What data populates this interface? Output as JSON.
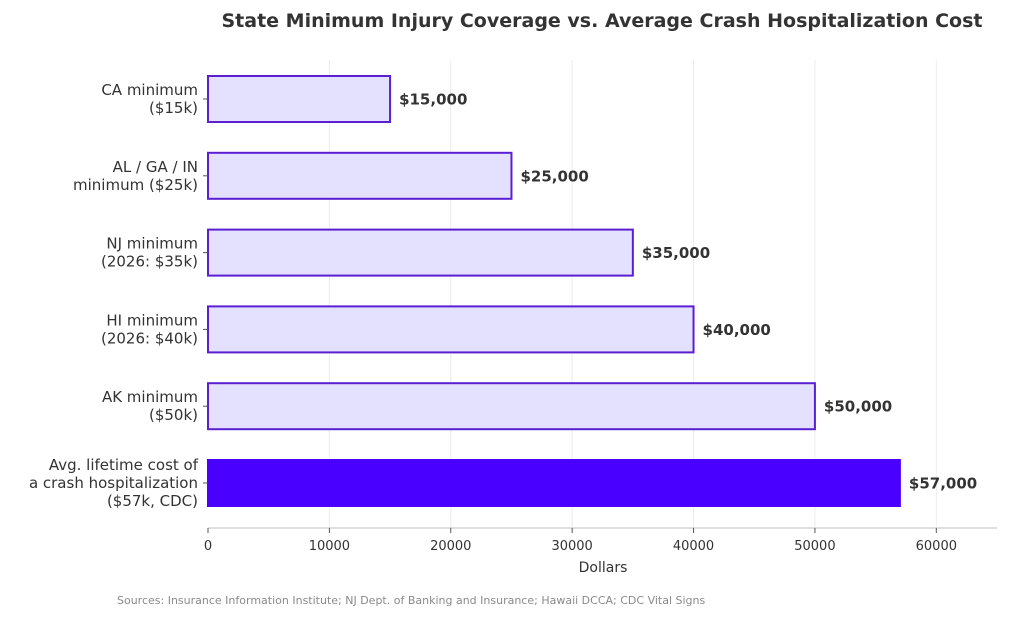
{
  "chart_data": {
    "type": "bar",
    "orientation": "horizontal",
    "title": "State Minimum Injury Coverage vs. Average Crash Hospitalization Cost",
    "xlabel": "Dollars",
    "ylabel": "",
    "xlim": [
      0,
      65000
    ],
    "x_ticks": [
      0,
      10000,
      20000,
      30000,
      40000,
      50000,
      60000
    ],
    "grid": "vertical",
    "categories": [
      [
        "CA minimum",
        "($15k)"
      ],
      [
        "AL / GA / IN",
        "minimum ($25k)"
      ],
      [
        "NJ minimum",
        "(2026: $35k)"
      ],
      [
        "HI minimum",
        "(2026: $40k)"
      ],
      [
        "AK minimum",
        "($50k)"
      ],
      [
        "Avg. lifetime cost of",
        "a crash hospitalization",
        "($57k, CDC)"
      ]
    ],
    "values": [
      15000,
      25000,
      35000,
      40000,
      50000,
      57000
    ],
    "data_labels": [
      "$15,000",
      "$25,000",
      "$35,000",
      "$40,000",
      "$50,000",
      "$57,000"
    ],
    "highlight_index": 5,
    "colors": {
      "bar_fill": "#e4e0ff",
      "bar_edge": "#5a1fd1",
      "highlight_fill": "#4a00ff",
      "grid": "#ececec",
      "axis": "#cccccc",
      "text": "#333333"
    },
    "source": "Sources: Insurance Information Institute; NJ Dept. of Banking and Insurance; Hawaii DCCA; CDC Vital Signs"
  }
}
